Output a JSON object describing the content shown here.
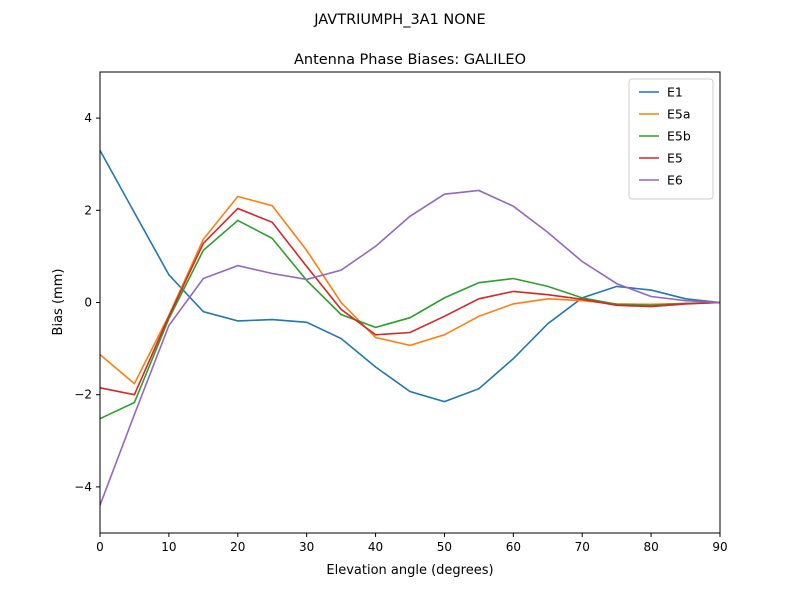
{
  "chart_data": {
    "type": "line",
    "suptitle": "JAVTRIUMPH_3A1  NONE",
    "title": "Antenna Phase Biases: GALILEO",
    "xlabel": "Elevation angle (degrees)",
    "ylabel": "Bias (mm)",
    "xlim": [
      0,
      90
    ],
    "ylim": [
      -5,
      5
    ],
    "xticks": [
      0,
      10,
      20,
      30,
      40,
      50,
      60,
      70,
      80,
      90
    ],
    "yticks": [
      -4,
      -2,
      0,
      2,
      4
    ],
    "grid": false,
    "legend_position": "top-right",
    "x": [
      0,
      5,
      10,
      15,
      20,
      25,
      30,
      35,
      40,
      45,
      50,
      55,
      60,
      65,
      70,
      75,
      80,
      85,
      90
    ],
    "series": [
      {
        "name": "E1",
        "color": "#1f77b4",
        "values": [
          3.3,
          1.95,
          0.6,
          -0.2,
          -0.4,
          -0.37,
          -0.43,
          -0.78,
          -1.4,
          -1.93,
          -2.15,
          -1.87,
          -1.22,
          -0.46,
          0.1,
          0.35,
          0.27,
          0.08,
          0
        ]
      },
      {
        "name": "E5a",
        "color": "#ff7f0e",
        "values": [
          -1.13,
          -1.76,
          -0.28,
          1.37,
          2.3,
          2.1,
          1.13,
          0.0,
          -0.76,
          -0.93,
          -0.7,
          -0.3,
          -0.03,
          0.08,
          0.04,
          -0.03,
          -0.04,
          -0.02,
          0
        ]
      },
      {
        "name": "E5b",
        "color": "#2ca02c",
        "values": [
          -2.52,
          -2.17,
          -0.35,
          1.13,
          1.78,
          1.39,
          0.48,
          -0.26,
          -0.54,
          -0.33,
          0.1,
          0.43,
          0.52,
          0.35,
          0.1,
          -0.04,
          -0.06,
          -0.02,
          0
        ]
      },
      {
        "name": "E5",
        "color": "#d62728",
        "values": [
          -1.85,
          -2.0,
          -0.3,
          1.28,
          2.04,
          1.74,
          0.78,
          -0.15,
          -0.7,
          -0.65,
          -0.3,
          0.08,
          0.24,
          0.17,
          0.07,
          -0.06,
          -0.09,
          -0.03,
          0
        ]
      },
      {
        "name": "E6",
        "color": "#9467bd",
        "values": [
          -4.4,
          -2.43,
          -0.5,
          0.52,
          0.8,
          0.63,
          0.5,
          0.7,
          1.22,
          1.87,
          2.35,
          2.43,
          2.09,
          1.52,
          0.89,
          0.41,
          0.13,
          0.04,
          0
        ]
      }
    ]
  }
}
